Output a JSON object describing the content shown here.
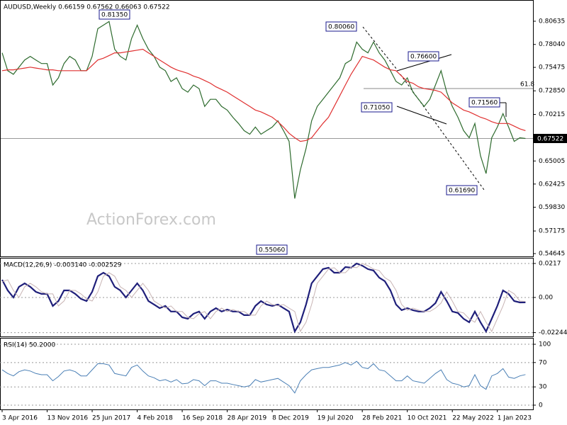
{
  "chart_data": [
    {
      "type": "line",
      "title": "AUDUSD,Weekly  0.66159 0.67562 0.66063 0.67522",
      "watermark": "ActionForex.com",
      "last_price_label": "0.67522",
      "fib_label": "61.8",
      "annotations": [
        "0.81350",
        "0.80060",
        "0.76600",
        "0.71050",
        "0.71560",
        "0.61690",
        "0.55060"
      ],
      "ylim": [
        0.5433,
        0.8301
      ],
      "yticks": [
        0.80635,
        {
          "value": 0.7804,
          "label": "0.78040"
        },
        0.75475,
        {
          "value": 0.7285,
          "label": "0.72850"
        },
        0.70215,
        0.65005,
        0.62425,
        {
          "value": 0.5983,
          "label": "0.59830"
        },
        0.57175,
        0.54645
      ],
      "grid": false,
      "series": [
        {
          "color": "#2e6b2e",
          "values": [
            0.771,
            0.751,
            0.747,
            0.755,
            0.763,
            0.767,
            0.763,
            0.759,
            0.759,
            0.735,
            0.743,
            0.759,
            0.767,
            0.763,
            0.751,
            0.751,
            0.767,
            0.798,
            0.802,
            0.806,
            0.775,
            0.767,
            0.763,
            0.787,
            0.802,
            0.787,
            0.775,
            0.767,
            0.755,
            0.751,
            0.739,
            0.743,
            0.731,
            0.727,
            0.735,
            0.731,
            0.711,
            0.719,
            0.719,
            0.711,
            0.707,
            0.699,
            0.692,
            0.684,
            0.68,
            0.688,
            0.68,
            0.684,
            0.688,
            0.695,
            0.684,
            0.672,
            0.608,
            0.64,
            0.664,
            0.695,
            0.711,
            0.719,
            0.727,
            0.735,
            0.743,
            0.759,
            0.763,
            0.783,
            0.775,
            0.771,
            0.783,
            0.771,
            0.763,
            0.751,
            0.739,
            0.735,
            0.743,
            0.727,
            0.719,
            0.711,
            0.719,
            0.735,
            0.751,
            0.727,
            0.711,
            0.699,
            0.684,
            0.676,
            0.692,
            0.656,
            0.636,
            0.676,
            0.688,
            0.703,
            0.688,
            0.672,
            0.676,
            0.67522
          ]
        },
        {
          "color": "#e03030",
          "values": [
            0.751,
            0.752,
            0.752,
            0.753,
            0.754,
            0.755,
            0.754,
            0.753,
            0.752,
            0.752,
            0.751,
            0.751,
            0.751,
            0.751,
            0.751,
            0.751,
            0.757,
            0.763,
            0.765,
            0.768,
            0.771,
            0.771,
            0.772,
            0.773,
            0.774,
            0.775,
            0.771,
            0.767,
            0.763,
            0.759,
            0.755,
            0.752,
            0.75,
            0.748,
            0.745,
            0.743,
            0.74,
            0.737,
            0.733,
            0.73,
            0.727,
            0.723,
            0.719,
            0.715,
            0.711,
            0.707,
            0.705,
            0.702,
            0.699,
            0.694,
            0.688,
            0.681,
            0.676,
            0.672,
            0.673,
            0.676,
            0.684,
            0.692,
            0.699,
            0.711,
            0.723,
            0.735,
            0.747,
            0.757,
            0.767,
            0.765,
            0.763,
            0.759,
            0.755,
            0.752,
            0.751,
            0.745,
            0.739,
            0.737,
            0.733,
            0.731,
            0.73,
            0.729,
            0.727,
            0.721,
            0.715,
            0.711,
            0.707,
            0.705,
            0.702,
            0.699,
            0.697,
            0.694,
            0.692,
            0.692,
            0.692,
            0.689,
            0.686,
            0.684
          ]
        }
      ]
    },
    {
      "type": "line",
      "title": "MACD(12,26,9) -0.003140 -0.002529",
      "ylim": [
        -0.0249,
        0.0253
      ],
      "yticks": [
        0.0217,
        {
          "value": 0,
          "label": "0.00"
        },
        -0.022445
      ],
      "grid": true,
      "series": [
        {
          "color": "#1f1f7a",
          "values": [
            0.0113,
            0.0045,
            0,
            0.0068,
            0.009,
            0.0068,
            0.0036,
            0.0023,
            0.0023,
            -0.0054,
            -0.0023,
            0.0045,
            0.0045,
            0.0023,
            -0.0009,
            -0.0023,
            0.0036,
            0.0136,
            0.0158,
            0.0136,
            0.0068,
            0.0045,
            0,
            0.0045,
            0.009,
            0.0045,
            -0.0023,
            -0.0045,
            -0.0068,
            -0.0054,
            -0.009,
            -0.009,
            -0.0127,
            -0.0136,
            -0.0104,
            -0.009,
            -0.0136,
            -0.009,
            -0.0068,
            -0.009,
            -0.0077,
            -0.009,
            -0.009,
            -0.0113,
            -0.0113,
            -0.0054,
            -0.0023,
            -0.0045,
            -0.0054,
            -0.0045,
            -0.0068,
            -0.009,
            -0.0217,
            -0.0158,
            -0.0045,
            0.009,
            0.0136,
            0.0181,
            0.019,
            0.0158,
            0.0158,
            0.0194,
            0.019,
            0.0217,
            0.0203,
            0.0181,
            0.0172,
            0.0127,
            0.0104,
            0.0045,
            -0.0045,
            -0.0081,
            -0.0068,
            -0.0081,
            -0.009,
            -0.009,
            -0.0068,
            -0.0036,
            0.0036,
            -0.0023,
            -0.009,
            -0.0099,
            -0.0136,
            -0.0158,
            -0.009,
            -0.0158,
            -0.0217,
            -0.0136,
            -0.0054,
            0.0045,
            0.0023,
            -0.0023,
            -0.0032,
            -0.00314
          ]
        },
        {
          "color": "#c8b4b4",
          "values": [
            0.01,
            0.0113,
            0.0045,
            0,
            0.0068,
            0.009,
            0.0068,
            0.0036,
            0.0023,
            0.0023,
            -0.0054,
            -0.0023,
            0.0045,
            0.0045,
            0.0023,
            -0.0009,
            -0.0023,
            0.0036,
            0.0136,
            0.0158,
            0.0136,
            0.0068,
            0.0045,
            0,
            0.0045,
            0.009,
            0.0045,
            -0.0023,
            -0.0045,
            -0.0068,
            -0.0054,
            -0.009,
            -0.009,
            -0.0127,
            -0.0136,
            -0.0104,
            -0.009,
            -0.0136,
            -0.009,
            -0.0068,
            -0.009,
            -0.0077,
            -0.009,
            -0.009,
            -0.0113,
            -0.0113,
            -0.0054,
            -0.0023,
            -0.0045,
            -0.0054,
            -0.0045,
            -0.0068,
            -0.009,
            -0.0217,
            -0.0158,
            -0.0045,
            0.009,
            0.0136,
            0.0181,
            0.019,
            0.0158,
            0.0158,
            0.0194,
            0.019,
            0.0217,
            0.0203,
            0.0181,
            0.0172,
            0.0127,
            0.0104,
            0.0045,
            -0.0045,
            -0.0081,
            -0.0068,
            -0.0081,
            -0.009,
            -0.009,
            -0.0068,
            -0.0036,
            0.0036,
            -0.0023,
            -0.009,
            -0.0099,
            -0.0136,
            -0.0158,
            -0.009,
            -0.0158,
            -0.0217,
            -0.0136,
            -0.0054,
            0.0045,
            0.0023,
            -0.0023,
            -0.002529
          ]
        }
      ]
    },
    {
      "type": "line",
      "title": "RSI(14) 50.2000",
      "ylim": [
        -7,
        110.5
      ],
      "yticks": [
        100,
        70,
        30,
        0
      ],
      "grid": true,
      "categories": [
        "3 Apr 2016",
        null,
        null,
        null,
        null,
        null,
        null,
        null,
        "13 Nov 2016",
        null,
        null,
        null,
        null,
        null,
        null,
        null,
        "25 Jun 2017",
        null,
        null,
        null,
        null,
        null,
        null,
        null,
        "4 Feb 2018",
        null,
        null,
        null,
        null,
        null,
        null,
        null,
        "16 Sep 2018",
        null,
        null,
        null,
        null,
        null,
        null,
        null,
        "28 Apr 2019",
        null,
        null,
        null,
        null,
        null,
        null,
        null,
        "8 Dec 2019",
        null,
        null,
        null,
        null,
        null,
        null,
        null,
        "19 Jul 2020",
        null,
        null,
        null,
        null,
        null,
        null,
        null,
        "28 Feb 2021",
        null,
        null,
        null,
        null,
        null,
        null,
        null,
        "10 Oct 2021",
        null,
        null,
        null,
        null,
        null,
        null,
        null,
        "22 May 2022",
        null,
        null,
        null,
        null,
        null,
        null,
        null,
        "1 Jan 2023",
        null,
        null,
        null,
        null,
        null
      ],
      "series": [
        {
          "color": "#4a7fb5",
          "values": [
            58,
            52,
            48,
            55,
            58,
            56,
            52,
            50,
            50,
            40,
            47,
            56,
            58,
            55,
            48,
            48,
            58,
            68,
            68,
            66,
            52,
            50,
            48,
            62,
            66,
            56,
            48,
            45,
            40,
            42,
            38,
            42,
            35,
            36,
            42,
            40,
            32,
            40,
            40,
            36,
            36,
            34,
            32,
            30,
            32,
            42,
            38,
            40,
            42,
            44,
            38,
            32,
            20,
            40,
            50,
            58,
            60,
            62,
            62,
            64,
            66,
            70,
            66,
            72,
            62,
            60,
            68,
            58,
            56,
            48,
            40,
            40,
            48,
            40,
            38,
            36,
            44,
            52,
            58,
            42,
            36,
            34,
            30,
            32,
            50,
            32,
            26,
            48,
            52,
            60,
            46,
            44,
            48,
            50.2
          ]
        }
      ]
    }
  ]
}
